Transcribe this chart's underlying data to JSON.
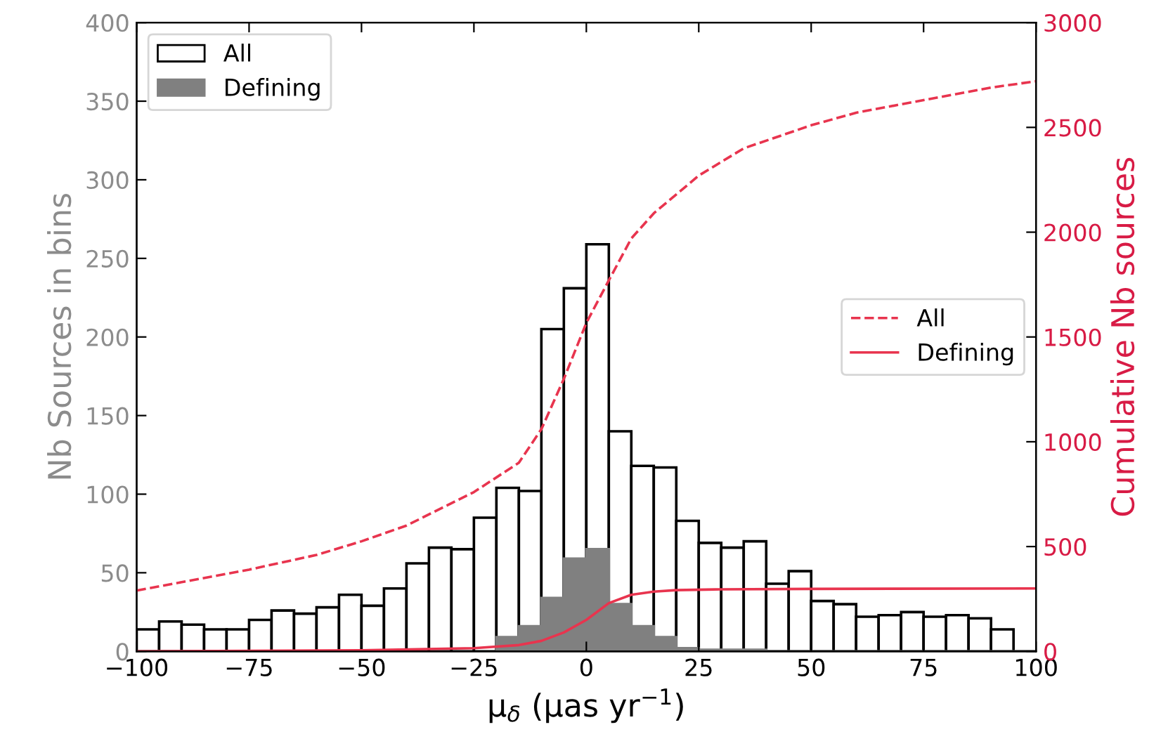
{
  "chart_data": {
    "type": "histogram",
    "xlabel": "μ$_{δ}$ (μas yr$^{−1}$)",
    "ylabel": "Nb Sources in bins",
    "y2label": "Cumulative Nb sources",
    "bins": [
      -100,
      -95,
      -90,
      -85,
      -80,
      -75,
      -70,
      -65,
      -60,
      -55,
      -50,
      -45,
      -40,
      -35,
      -30,
      -25,
      -20,
      -15,
      -10,
      -5,
      0,
      5,
      10,
      15,
      20,
      25,
      30,
      35,
      40,
      45,
      50,
      55,
      60,
      65,
      70,
      75,
      80,
      85,
      90,
      95,
      100
    ],
    "series": [
      {
        "name": "All",
        "color": "#ffffff",
        "values": [
          14,
          19,
          17,
          14,
          14,
          20,
          26,
          24,
          28,
          36,
          29,
          40,
          56,
          66,
          65,
          85,
          104,
          102,
          205,
          231,
          259,
          140,
          118,
          117,
          83,
          69,
          66,
          70,
          43,
          51,
          32,
          30,
          22,
          23,
          25,
          22,
          23,
          21,
          14,
          0
        ]
      },
      {
        "name": "Defining",
        "color": "#808080",
        "values": [
          0,
          0,
          0,
          0,
          0,
          0,
          0,
          0,
          0,
          0,
          null,
          null,
          null,
          null,
          null,
          null,
          9,
          16,
          34,
          59,
          65,
          30,
          16,
          9,
          2,
          1,
          1,
          1,
          0,
          0,
          0,
          0,
          0,
          0,
          0,
          0,
          0,
          0,
          0,
          0
        ]
      },
      {
        "name": "All",
        "type": "line",
        "axis": "y2",
        "line_style": "dashed",
        "color": "#e8344e",
        "x": [
          -100,
          -90,
          -75,
          -60,
          -50,
          -40,
          -25,
          -15,
          -10,
          -5,
          0,
          5,
          10,
          15,
          25,
          35,
          50,
          60,
          75,
          90,
          100
        ],
        "values": [
          290,
          330,
          390,
          460,
          525,
          600,
          760,
          900,
          1060,
          1300,
          1567,
          1770,
          1970,
          2090,
          2270,
          2400,
          2510,
          2570,
          2630,
          2690,
          2720
        ]
      },
      {
        "name": "Defining",
        "type": "line",
        "axis": "y2",
        "line_style": "solid",
        "color": "#e8344e",
        "x": [
          -100,
          -50,
          -25,
          -15,
          -10,
          -5,
          0,
          5,
          10,
          15,
          20,
          30,
          50,
          100
        ],
        "values": [
          0,
          5,
          15,
          30,
          50,
          90,
          150,
          230,
          270,
          285,
          292,
          296,
          298,
          300
        ]
      }
    ],
    "xlim": [
      -100,
      100
    ],
    "xticks": [
      {
        "value": -100,
        "label": "−100"
      },
      {
        "value": -75,
        "label": "−75"
      },
      {
        "value": -50,
        "label": "−50"
      },
      {
        "value": -25,
        "label": "−25"
      },
      0,
      25,
      50,
      75,
      100
    ],
    "ylim": [
      0,
      400
    ],
    "yticks": [
      0,
      50,
      100,
      150,
      200,
      250,
      300,
      350,
      400
    ],
    "y2lim": [
      0,
      3000
    ],
    "y2ticks": [
      0,
      500,
      1000,
      1500,
      2000,
      2500,
      3000
    ],
    "grid": false,
    "legend": "top left"
  }
}
